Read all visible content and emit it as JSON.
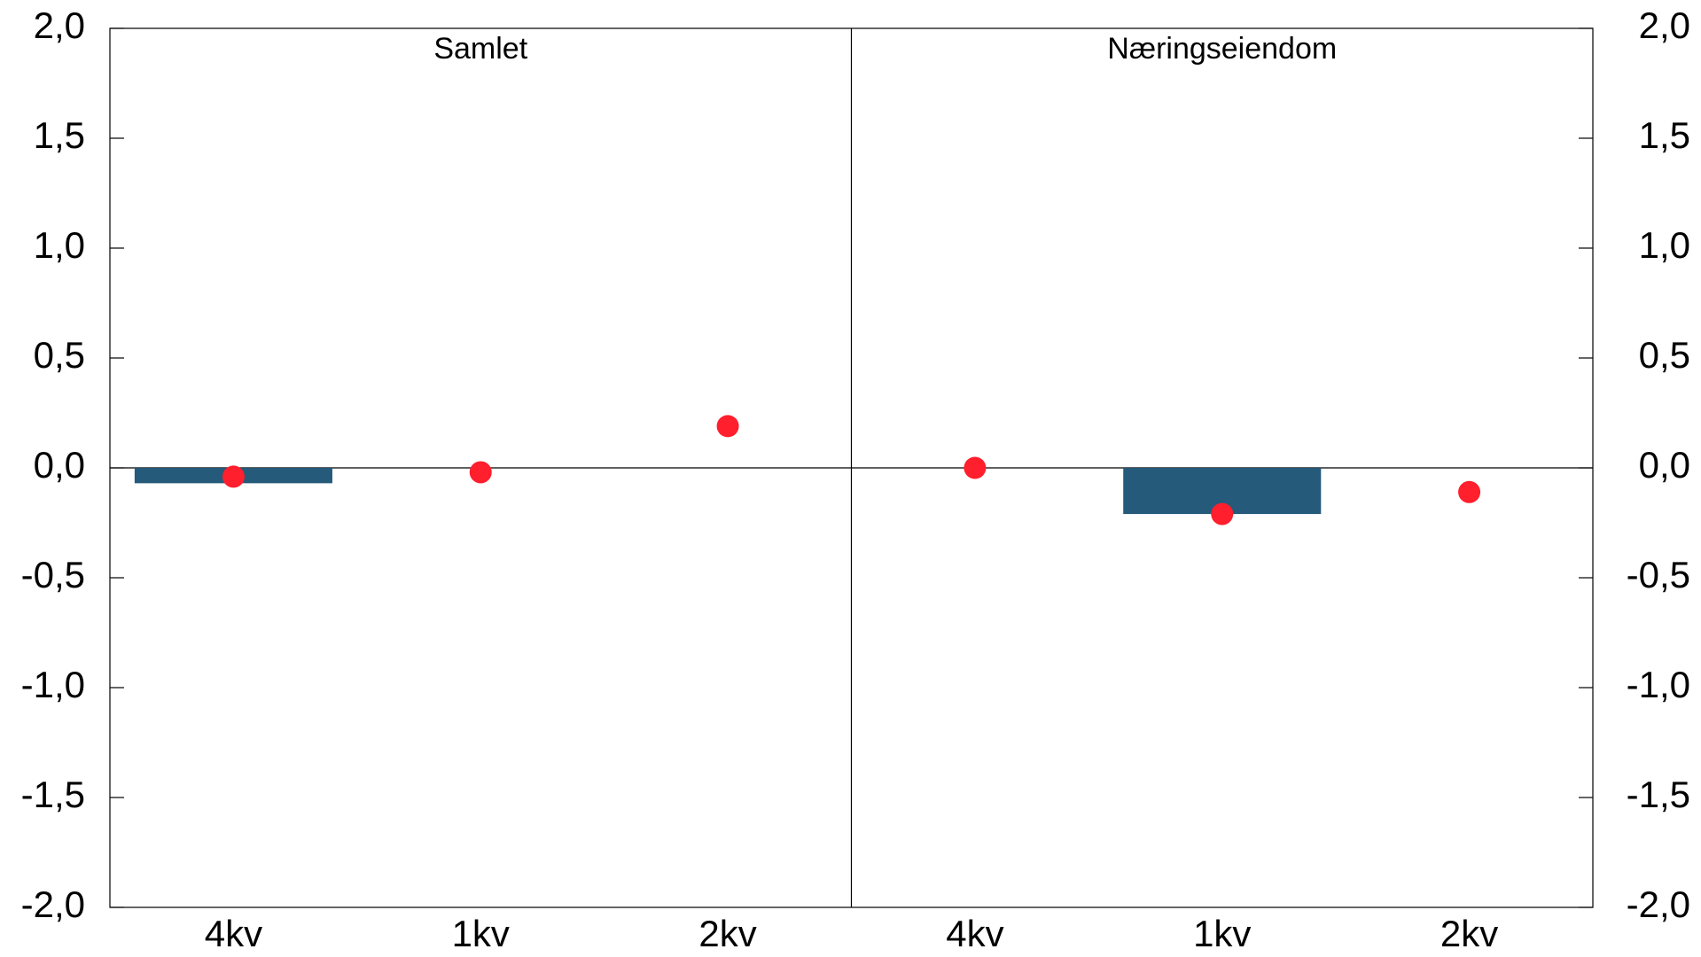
{
  "chart_data": {
    "type": "bar",
    "panels": [
      "Samlet",
      "Næringseiendom"
    ],
    "categories": [
      "4kv",
      "1kv",
      "2kv",
      "4kv",
      "1kv",
      "2kv"
    ],
    "series": [
      {
        "type": "bar",
        "color": "#255a7a",
        "values": [
          -0.07,
          null,
          null,
          null,
          -0.21,
          null
        ]
      },
      {
        "type": "scatter",
        "color": "#ff1f2d",
        "values": [
          -0.04,
          -0.02,
          0.19,
          0.0,
          -0.21,
          -0.11
        ]
      }
    ],
    "ylim": [
      -2,
      2
    ],
    "yticks": [
      {
        "value": -2,
        "label": "-2,0"
      },
      {
        "value": -1.5,
        "label": "-1,5"
      },
      {
        "value": -1,
        "label": "-1,0"
      },
      {
        "value": -0.5,
        "label": "-0,5"
      },
      {
        "value": 0,
        "label": "0,0"
      },
      {
        "value": 0.5,
        "label": "0,5"
      },
      {
        "value": 1,
        "label": "1,0"
      },
      {
        "value": 1.5,
        "label": "1,5"
      },
      {
        "value": 2,
        "label": "2,0"
      }
    ],
    "y2lim": [
      -2,
      2
    ],
    "y2ticks": [
      {
        "value": -2,
        "label": "-2,0"
      },
      {
        "value": -1.5,
        "label": "-1,5"
      },
      {
        "value": -1,
        "label": "-1,0"
      },
      {
        "value": -0.5,
        "label": "-0,5"
      },
      {
        "value": 0,
        "label": "0,0"
      },
      {
        "value": 0.5,
        "label": "0,5"
      },
      {
        "value": 1,
        "label": "1,0"
      },
      {
        "value": 1.5,
        "label": "1,5"
      },
      {
        "value": 2,
        "label": "2,0"
      }
    ],
    "grid": false
  }
}
